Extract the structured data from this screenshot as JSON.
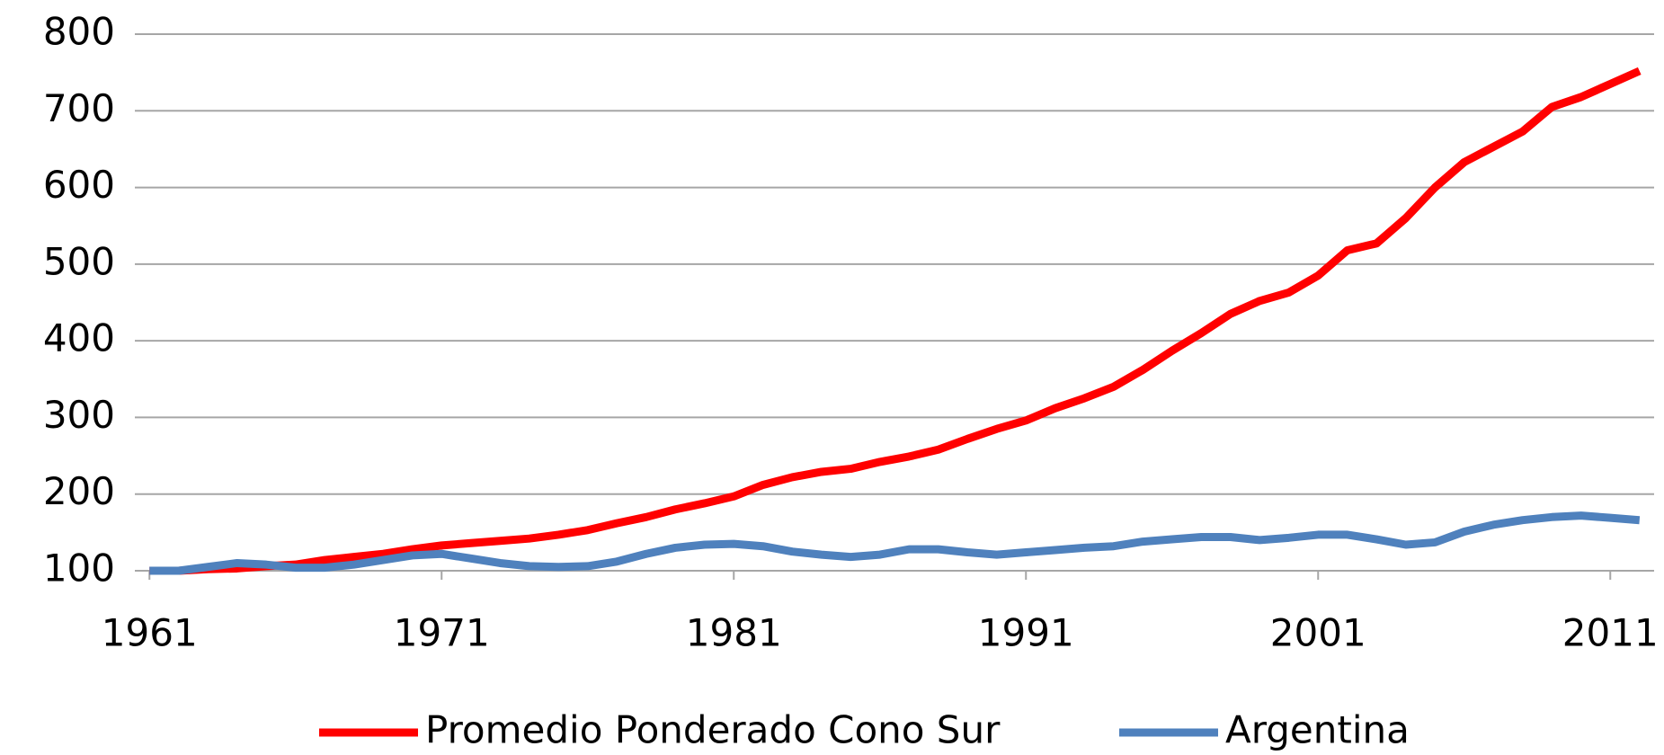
{
  "chart_data": {
    "type": "line",
    "x": [
      1961,
      1962,
      1963,
      1964,
      1965,
      1966,
      1967,
      1968,
      1969,
      1970,
      1971,
      1972,
      1973,
      1974,
      1975,
      1976,
      1977,
      1978,
      1979,
      1980,
      1981,
      1982,
      1983,
      1984,
      1985,
      1986,
      1987,
      1988,
      1989,
      1990,
      1991,
      1992,
      1993,
      1994,
      1995,
      1996,
      1997,
      1998,
      1999,
      2000,
      2001,
      2002,
      2003,
      2004,
      2005,
      2006,
      2007,
      2008,
      2009,
      2010,
      2011,
      2012
    ],
    "series": [
      {
        "name": "Promedio Ponderado Cono Sur",
        "color": "#ff0000",
        "values": [
          100,
          100,
          102,
          103,
          106,
          108,
          114,
          118,
          122,
          128,
          133,
          136,
          139,
          142,
          147,
          153,
          162,
          170,
          180,
          188,
          197,
          212,
          222,
          229,
          233,
          242,
          249,
          258,
          272,
          285,
          296,
          312,
          325,
          340,
          362,
          387,
          410,
          435,
          452,
          463,
          485,
          518,
          527,
          560,
          600,
          633,
          653,
          673,
          705,
          718,
          735,
          752
        ]
      },
      {
        "name": "Argentina",
        "color": "#4f81bd",
        "values": [
          100,
          100,
          105,
          110,
          108,
          104,
          104,
          108,
          114,
          120,
          122,
          116,
          110,
          106,
          105,
          106,
          112,
          122,
          130,
          134,
          135,
          132,
          125,
          121,
          118,
          121,
          128,
          128,
          124,
          121,
          124,
          127,
          130,
          132,
          138,
          141,
          144,
          144,
          140,
          143,
          147,
          147,
          141,
          134,
          137,
          151,
          160,
          166,
          170,
          172,
          169,
          166
        ]
      }
    ],
    "xlim": [
      1960.5,
      2012.5
    ],
    "xticks": [
      1961,
      1971,
      1981,
      1991,
      2001,
      2011
    ],
    "ylim": [
      100,
      800
    ],
    "yticks": [
      100,
      200,
      300,
      400,
      500,
      600,
      700,
      800
    ],
    "grid": true,
    "legend": "bottom"
  }
}
